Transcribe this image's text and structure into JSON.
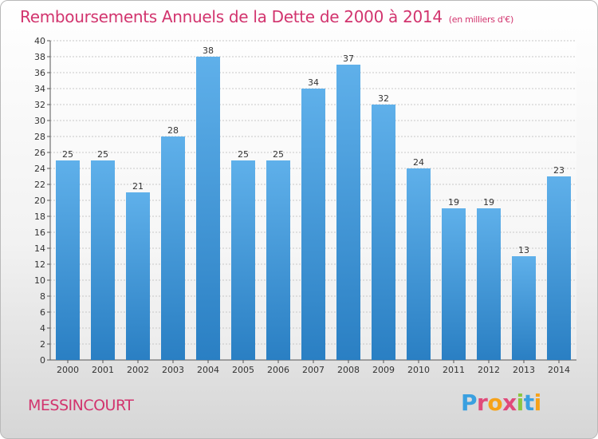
{
  "header": {
    "title": "Remboursements Annuels de la Dette de 2000 à 2014",
    "unit": "(en milliers d'€)"
  },
  "footer": {
    "city": "MESSINCOURT",
    "brand_letters": [
      "P",
      "r",
      "o",
      "x",
      "i",
      "t",
      "i"
    ]
  },
  "colors": {
    "title": "#d2346e",
    "bar_top": "#5fb0ea",
    "bar_bottom": "#2a7fc3",
    "grid": "#c8c8c8",
    "brand": [
      "#3aa0e0",
      "#e04a7a",
      "#f6a21a",
      "#e04a7a",
      "#8cc63f",
      "#3aa0e0",
      "#f6a21a"
    ]
  },
  "chart_data": {
    "type": "bar",
    "title": "Remboursements Annuels de la Dette de 2000 à 2014",
    "subtitle": "(en milliers d'€)",
    "xlabel": "",
    "ylabel": "",
    "ylim": [
      0,
      40
    ],
    "ytick_step": 2,
    "grid": true,
    "categories": [
      "2000",
      "2001",
      "2002",
      "2003",
      "2004",
      "2005",
      "2006",
      "2007",
      "2008",
      "2009",
      "2010",
      "2011",
      "2012",
      "2013",
      "2014"
    ],
    "values": [
      25,
      25,
      21,
      28,
      38,
      25,
      25,
      34,
      37,
      32,
      24,
      19,
      19,
      13,
      23
    ]
  }
}
